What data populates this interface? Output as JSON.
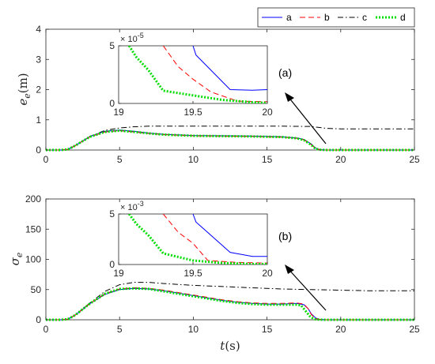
{
  "colors": {
    "a": "#0000ff",
    "b": "#ff0000",
    "c": "#000000",
    "d": "#00dd00"
  },
  "legend": {
    "placement": "top-right",
    "entries": [
      "a",
      "b",
      "c",
      "d"
    ]
  },
  "chart_data": [
    {
      "type": "line",
      "panel_label": "(a)",
      "ylabel_main": "e",
      "ylabel_sub": "e",
      "ylabel_unit": "(m)",
      "xlabel": "",
      "xlim": [
        0,
        25
      ],
      "ylim": [
        0,
        4
      ],
      "xticks": [
        "0",
        "5",
        "10",
        "15",
        "20",
        "25"
      ],
      "yticks": [
        "0",
        "1",
        "2",
        "3",
        "4"
      ],
      "grid": false,
      "series": [
        {
          "name": "a",
          "x": [
            0,
            1,
            1.5,
            2,
            3,
            4,
            5,
            6,
            7,
            8,
            10,
            12,
            14,
            15,
            16,
            17,
            17.5,
            18,
            18.3,
            18.6,
            19,
            20,
            25
          ],
          "y": [
            0,
            0,
            0.02,
            0.15,
            0.45,
            0.62,
            0.66,
            0.62,
            0.56,
            0.52,
            0.48,
            0.47,
            0.46,
            0.45,
            0.44,
            0.4,
            0.35,
            0.2,
            0.06,
            0.01,
            0,
            0,
            0
          ]
        },
        {
          "name": "b",
          "x": [
            0,
            1,
            1.5,
            2,
            3,
            4,
            5,
            6,
            7,
            8,
            10,
            12,
            14,
            15,
            16,
            17,
            17.5,
            18,
            18.3,
            18.6,
            19,
            20,
            25
          ],
          "y": [
            0,
            0,
            0.02,
            0.15,
            0.44,
            0.6,
            0.64,
            0.6,
            0.55,
            0.51,
            0.47,
            0.46,
            0.45,
            0.44,
            0.43,
            0.39,
            0.34,
            0.18,
            0.05,
            0.01,
            0,
            0,
            0
          ]
        },
        {
          "name": "c",
          "x": [
            0,
            1,
            1.5,
            2,
            3,
            4,
            5,
            6,
            7,
            8,
            10,
            12,
            14,
            16,
            18,
            19,
            20,
            25
          ],
          "y": [
            0,
            0,
            0.02,
            0.15,
            0.45,
            0.65,
            0.73,
            0.77,
            0.79,
            0.79,
            0.79,
            0.79,
            0.79,
            0.79,
            0.78,
            0.72,
            0.7,
            0.7
          ]
        },
        {
          "name": "d",
          "x": [
            0,
            1,
            1.5,
            2,
            3,
            4,
            5,
            6,
            7,
            8,
            10,
            12,
            14,
            15,
            16,
            17,
            17.5,
            18,
            18.3,
            18.6,
            19,
            20,
            25
          ],
          "y": [
            0,
            0,
            0.02,
            0.15,
            0.44,
            0.6,
            0.64,
            0.6,
            0.55,
            0.51,
            0.47,
            0.46,
            0.45,
            0.44,
            0.43,
            0.39,
            0.33,
            0.17,
            0.04,
            0.01,
            0,
            0,
            0
          ]
        }
      ],
      "inset": {
        "xlim": [
          19,
          20
        ],
        "ylim": [
          0,
          5
        ],
        "xticks": [
          "19",
          "19.5",
          "20"
        ],
        "yticks": [
          "0",
          "5"
        ],
        "multiplier_base": "× 10",
        "multiplier_exp": "-5",
        "series": [
          {
            "name": "a",
            "x": [
              19.5,
              19.52,
              19.75,
              19.9,
              20
            ],
            "y": [
              5,
              4.2,
              1.2,
              1.15,
              1.2
            ]
          },
          {
            "name": "b",
            "x": [
              19.3,
              19.4,
              19.5,
              19.62,
              19.8,
              20
            ],
            "y": [
              5,
              3.2,
              2.1,
              1.0,
              0.2,
              0.15
            ]
          },
          {
            "name": "c",
            "x": [],
            "y": []
          },
          {
            "name": "d",
            "x": [
              19.07,
              19.12,
              19.2,
              19.3,
              19.5,
              19.7,
              19.9,
              20
            ],
            "y": [
              5,
              4.0,
              2.9,
              1.1,
              0.7,
              0.3,
              0.1,
              0.05
            ]
          }
        ]
      }
    },
    {
      "type": "line",
      "panel_label": "(b)",
      "ylabel_main": "σ",
      "ylabel_sub": "e",
      "ylabel_unit": "",
      "xlabel_main": "t",
      "xlabel_unit": "(s)",
      "xlim": [
        0,
        25
      ],
      "ylim": [
        0,
        200
      ],
      "xticks": [
        "0",
        "5",
        "10",
        "15",
        "20",
        "25"
      ],
      "yticks": [
        "0",
        "50",
        "100",
        "150",
        "200"
      ],
      "grid": false,
      "series": [
        {
          "name": "a",
          "x": [
            0,
            1,
            1.5,
            2,
            3,
            4,
            5,
            6,
            7,
            8,
            9,
            10,
            11,
            12,
            13,
            14,
            15,
            16,
            17,
            17.5,
            17.8,
            18,
            18.3,
            18.6,
            19,
            20,
            25
          ],
          "y": [
            0,
            0,
            1,
            8,
            27,
            42,
            50,
            52,
            51,
            48,
            44,
            40,
            36,
            32,
            29,
            27,
            26,
            26,
            27,
            25,
            18,
            10,
            3,
            0.5,
            0,
            0,
            0
          ]
        },
        {
          "name": "b",
          "x": [
            0,
            1,
            1.5,
            2,
            3,
            4,
            5,
            6,
            7,
            8,
            9,
            10,
            11,
            12,
            13,
            14,
            15,
            16,
            17,
            17.5,
            17.8,
            18,
            18.3,
            18.6,
            19,
            20,
            25
          ],
          "y": [
            0,
            0,
            1,
            8,
            27,
            43,
            51,
            53,
            52,
            49,
            45,
            41,
            37,
            33,
            30,
            28,
            27,
            27,
            28,
            26,
            18,
            9,
            2,
            0.5,
            0,
            0,
            0
          ]
        },
        {
          "name": "c",
          "x": [
            0,
            1,
            1.5,
            2,
            3,
            4,
            5,
            6,
            7,
            8,
            10,
            12,
            14,
            16,
            18,
            20,
            22,
            25
          ],
          "y": [
            0,
            0,
            1,
            8,
            28,
            47,
            58,
            62,
            62,
            60,
            57,
            55,
            53,
            51,
            50,
            49,
            48,
            48
          ]
        },
        {
          "name": "d",
          "x": [
            0,
            1,
            1.5,
            2,
            3,
            4,
            5,
            6,
            7,
            8,
            9,
            10,
            11,
            12,
            13,
            14,
            15,
            16,
            17,
            17.3,
            17.6,
            17.9,
            18.2,
            18.5,
            19,
            20,
            25
          ],
          "y": [
            0,
            0,
            1,
            8,
            27,
            43,
            51,
            52,
            51,
            47,
            43,
            39,
            35,
            31,
            28,
            26,
            25,
            25,
            25,
            24,
            15,
            6,
            1,
            0.3,
            0,
            0,
            0
          ]
        }
      ],
      "inset": {
        "xlim": [
          19,
          20
        ],
        "ylim": [
          0,
          5
        ],
        "xticks": [
          "19",
          "19.5",
          "20"
        ],
        "yticks": [
          "0",
          "5"
        ],
        "multiplier_base": "× 10",
        "multiplier_exp": "-3",
        "series": [
          {
            "name": "a",
            "x": [
              19.5,
              19.52,
              19.75,
              19.9,
              20
            ],
            "y": [
              5,
              4.2,
              1.2,
              0.8,
              0.8
            ]
          },
          {
            "name": "b",
            "x": [
              19.3,
              19.4,
              19.5,
              19.6,
              19.8,
              20
            ],
            "y": [
              5,
              3.2,
              2.1,
              0.4,
              0.2,
              0.15
            ]
          },
          {
            "name": "c",
            "x": [],
            "y": []
          },
          {
            "name": "d",
            "x": [
              19.07,
              19.12,
              19.2,
              19.3,
              19.5,
              19.7,
              19.9,
              20
            ],
            "y": [
              5,
              4.0,
              2.9,
              1.1,
              0.4,
              0.15,
              0.05,
              0.05
            ]
          }
        ]
      }
    }
  ]
}
